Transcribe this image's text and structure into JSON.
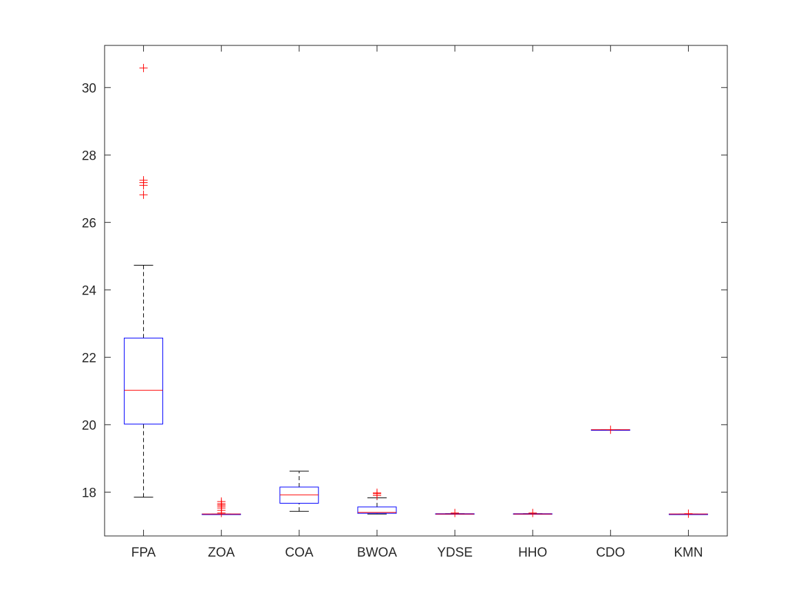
{
  "chart_data": {
    "type": "box",
    "categories": [
      "FPA",
      "ZOA",
      "COA",
      "BWOA",
      "YDSE",
      "HHO",
      "CDO",
      "KMN"
    ],
    "ylim": [
      16.7,
      31.25
    ],
    "yticks": [
      18,
      20,
      22,
      24,
      26,
      28,
      30
    ],
    "xlabel": "",
    "ylabel": "",
    "title": "",
    "grid": false,
    "colors": {
      "box": "#0000ff",
      "median": "#ff0000",
      "whisker": "#000000",
      "outlier": "#ff0000",
      "axis": "#262626"
    },
    "boxes": [
      {
        "label": "FPA",
        "q1": 20.02,
        "median": 21.02,
        "q3": 22.57,
        "whisker_low": 17.85,
        "whisker_high": 24.73,
        "outliers": [
          30.58,
          27.25,
          27.18,
          27.1,
          26.82
        ]
      },
      {
        "label": "ZOA",
        "q1": 17.35,
        "median": 17.35,
        "q3": 17.35,
        "whisker_low": 17.35,
        "whisker_high": 17.35,
        "outliers": [
          17.72,
          17.66,
          17.62,
          17.58,
          17.53,
          17.46,
          17.38
        ]
      },
      {
        "label": "COA",
        "q1": 17.67,
        "median": 17.92,
        "q3": 18.15,
        "whisker_low": 17.43,
        "whisker_high": 18.62,
        "outliers": []
      },
      {
        "label": "BWOA",
        "q1": 17.37,
        "median": 17.4,
        "q3": 17.56,
        "whisker_low": 17.35,
        "whisker_high": 17.83,
        "outliers": [
          17.98,
          17.95,
          17.9
        ]
      },
      {
        "label": "YDSE",
        "q1": 17.35,
        "median": 17.35,
        "q3": 17.36,
        "whisker_low": 17.35,
        "whisker_high": 17.36,
        "outliers": [
          17.38
        ]
      },
      {
        "label": "HHO",
        "q1": 17.35,
        "median": 17.35,
        "q3": 17.36,
        "whisker_low": 17.35,
        "whisker_high": 17.36,
        "outliers": [
          17.38
        ]
      },
      {
        "label": "CDO",
        "q1": 19.85,
        "median": 19.85,
        "q3": 19.85,
        "whisker_low": 19.85,
        "whisker_high": 19.85,
        "outliers": [
          19.85
        ]
      },
      {
        "label": "KMN",
        "q1": 17.35,
        "median": 17.35,
        "q3": 17.35,
        "whisker_low": 17.35,
        "whisker_high": 17.35,
        "outliers": [
          17.36
        ]
      }
    ]
  }
}
